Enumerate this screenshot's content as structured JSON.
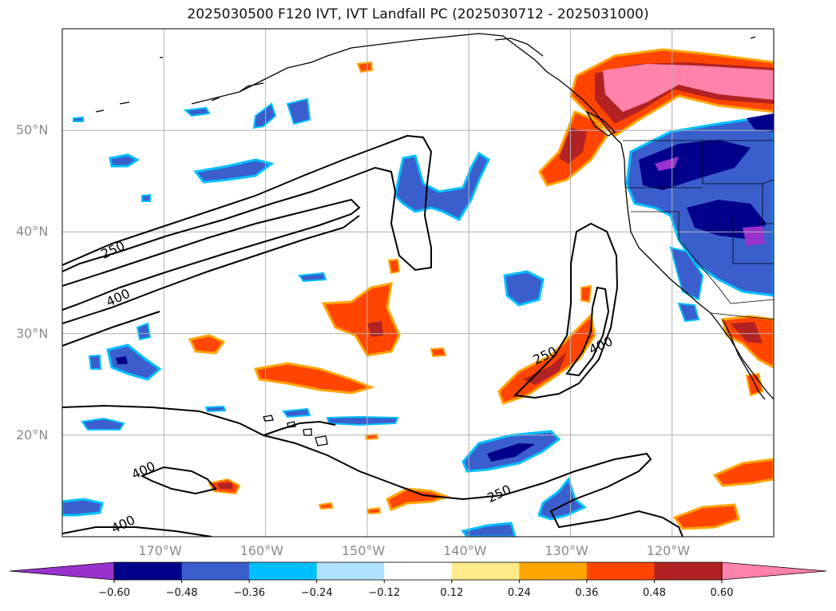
{
  "title": "2025030500 F120 IVT, IVT Landfall PC (2025030712 - 2025031000)",
  "map": {
    "lat_labels": [
      {
        "lat": 50,
        "label": "50°N"
      },
      {
        "lat": 40,
        "label": "40°N"
      },
      {
        "lat": 30,
        "label": "30°N"
      },
      {
        "lat": 20,
        "label": "20°N"
      }
    ],
    "lon_labels": [
      {
        "lon": -170,
        "label": "170°W"
      },
      {
        "lon": -160,
        "label": "160°W"
      },
      {
        "lon": -150,
        "label": "150°W"
      },
      {
        "lon": -140,
        "label": "140°W"
      },
      {
        "lon": -130,
        "label": "130°W"
      },
      {
        "lon": -120,
        "label": "120°W"
      }
    ],
    "lon_range": [
      -180,
      -110
    ],
    "lat_range": [
      10,
      60
    ],
    "gridlines": true,
    "contour_labels": [
      {
        "label": "250",
        "lon": -175,
        "lat": 38.2
      },
      {
        "label": "400",
        "lon": -174.5,
        "lat": 33.5
      },
      {
        "label": "400",
        "lon": -172,
        "lat": 16.5
      },
      {
        "label": "400",
        "lon": -174,
        "lat": 11.2
      },
      {
        "label": "250",
        "lon": -132.5,
        "lat": 27.8
      },
      {
        "label": "400",
        "lon": -127,
        "lat": 28.8
      },
      {
        "label": "250",
        "lon": -137,
        "lat": 14.2
      }
    ]
  },
  "colorbar": {
    "ticks": [
      "−0.60",
      "−0.48",
      "−0.36",
      "−0.24",
      "−0.12",
      "0.12",
      "0.24",
      "0.36",
      "0.48",
      "0.60"
    ],
    "colors": [
      "#9932cc",
      "#00008b",
      "#3a5fcd",
      "#00bfff",
      "#b0e2ff",
      "#ffffff",
      "#ffeb8a",
      "#ffa500",
      "#ff4500",
      "#b22222",
      "#ff82ab"
    ],
    "extend": "both"
  },
  "colors": {
    "purple": "#9932cc",
    "navy": "#00008b",
    "blue": "#3a5fcd",
    "sky": "#00bfff",
    "lightblue": "#b0e2ff",
    "yellow": "#ffeb8a",
    "orange": "#ffa500",
    "redorange": "#ff4500",
    "firebrick": "#b22222",
    "pink": "#ff82ab"
  }
}
